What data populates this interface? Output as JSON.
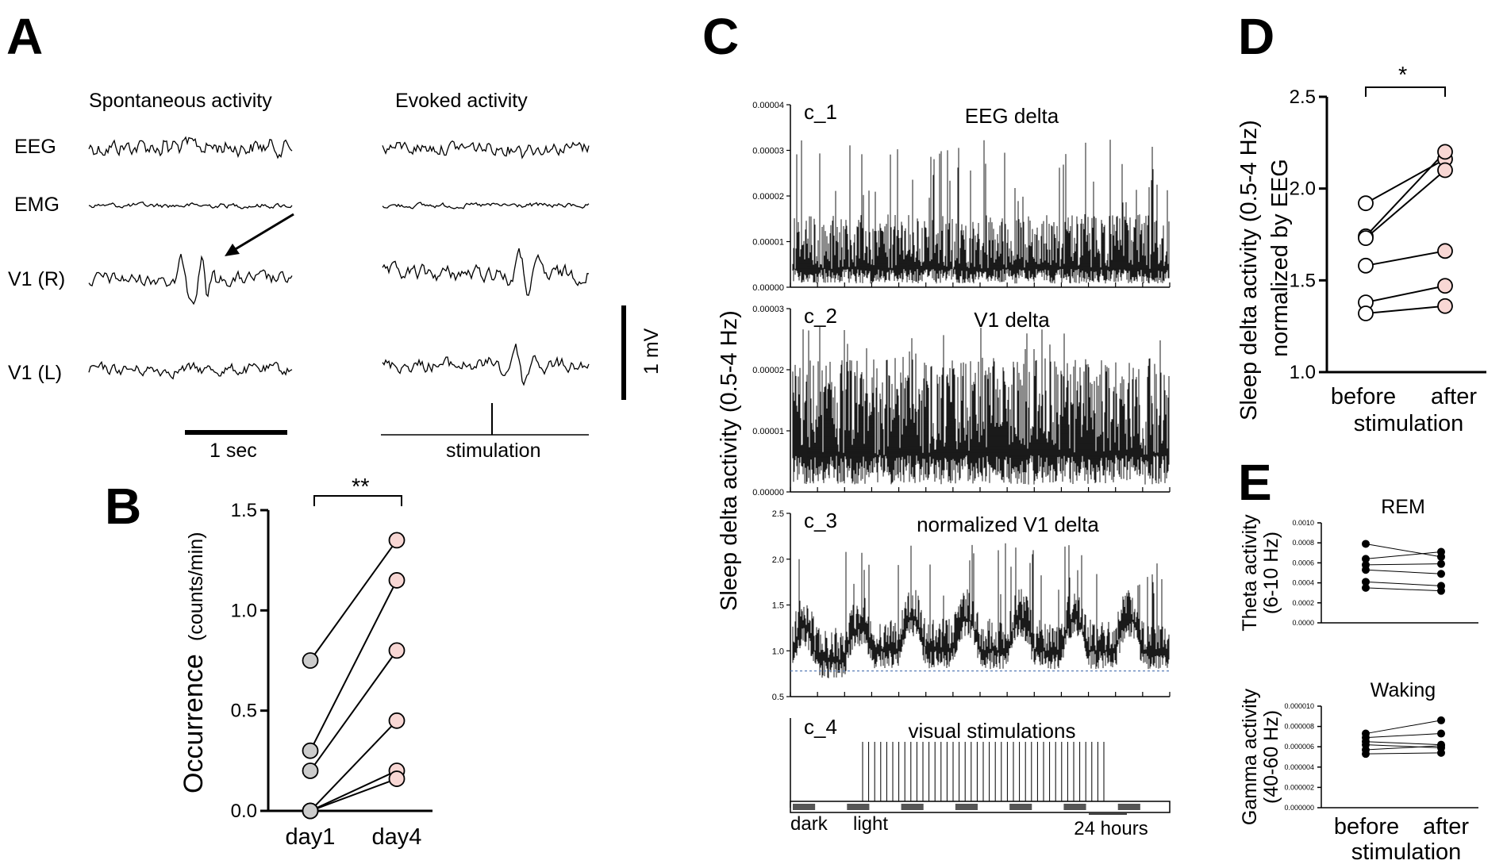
{
  "chart_data": [
    {
      "panel": "A",
      "type": "line",
      "title_left": "Spontaneous activity",
      "title_right": "Evoked activity",
      "channels": [
        "EEG",
        "EMG",
        "V1 (R)",
        "V1 (L)"
      ],
      "time_scale_label": "1 sec",
      "voltage_scale_label": "1 mV",
      "stimulation_label": "stimulation"
    },
    {
      "panel": "B",
      "type": "scatter",
      "ylabel_main": "Occurrence",
      "ylabel_unit": "(counts/min)",
      "categories": [
        "day1",
        "day4"
      ],
      "ylim": [
        0,
        1.5
      ],
      "yticks": [
        "0.0",
        "0.5",
        "1.0",
        "1.5"
      ],
      "significance": "**",
      "pairs": [
        [
          0.75,
          1.35
        ],
        [
          0.3,
          1.15
        ],
        [
          0.2,
          0.8
        ],
        [
          0.0,
          0.45
        ],
        [
          0.0,
          0.2
        ],
        [
          0.0,
          0.16
        ]
      ],
      "colors": {
        "day1": "#cccccc",
        "day4": "#f8d7d4"
      }
    },
    {
      "panel": "C",
      "type": "line",
      "ylabel": "Sleep delta activity (0.5-4 Hz)",
      "subpanels": [
        {
          "tag": "c_1",
          "title": "EEG delta",
          "yticks": [
            "0.00004",
            "0.00003",
            "0.00002",
            "0.00001",
            "0.00000"
          ]
        },
        {
          "tag": "c_2",
          "title": "V1 delta",
          "yticks": [
            "0.00003",
            "0.00002",
            "0.00001",
            "0.00000"
          ]
        },
        {
          "tag": "c_3",
          "title": "normalized V1 delta",
          "yticks": [
            "2.5",
            "2.0",
            "1.5",
            "1.0",
            "0.5"
          ]
        },
        {
          "tag": "c_4",
          "title": "visual stimulations"
        }
      ],
      "dark_label": "dark",
      "light_label": "light",
      "duration_label": "24 hours"
    },
    {
      "panel": "D",
      "type": "scatter",
      "ylabel_line1": "Sleep delta activity (0.5-4 Hz)",
      "ylabel_line2": "normalized by EEG",
      "categories": [
        "before",
        "after"
      ],
      "xlabel": "stimulation",
      "ylim": [
        1.0,
        2.5
      ],
      "yticks": [
        "1.0",
        "1.5",
        "2.0",
        "2.5"
      ],
      "significance": "*",
      "pairs": [
        [
          1.92,
          2.16
        ],
        [
          1.74,
          2.2
        ],
        [
          1.73,
          2.1
        ],
        [
          1.58,
          1.66
        ],
        [
          1.38,
          1.47
        ],
        [
          1.32,
          1.36
        ]
      ]
    },
    {
      "panel": "E",
      "type": "scatter",
      "categories": [
        "before",
        "after"
      ],
      "xlabel": "stimulation",
      "subpanels": [
        {
          "title": "REM",
          "ylabel_line1": "Theta activity",
          "ylabel_line2": "(6-10 Hz)",
          "ylim": [
            0,
            0.001
          ],
          "yticks": [
            "0.0010",
            "0.0008",
            "0.0006",
            "0.0004",
            "0.0002",
            "0.0000"
          ],
          "pairs": [
            [
              0.00079,
              0.00066
            ],
            [
              0.00064,
              0.00071
            ],
            [
              0.00058,
              0.00059
            ],
            [
              0.00053,
              0.00049
            ],
            [
              0.00041,
              0.00037
            ],
            [
              0.00035,
              0.00032
            ]
          ]
        },
        {
          "title": "Waking",
          "ylabel_line1": "Gamma activity",
          "ylabel_line2": "(40-60 Hz)",
          "ylim": [
            0,
            1e-05
          ],
          "yticks": [
            "0.000010",
            "0.000008",
            "0.000006",
            "0.000004",
            "0.000002",
            "0.000000"
          ],
          "pairs": [
            [
              7.3e-06,
              8.6e-06
            ],
            [
              6.9e-06,
              7.3e-06
            ],
            [
              6.5e-06,
              6.2e-06
            ],
            [
              6.2e-06,
              5.9e-06
            ],
            [
              5.7e-06,
              6.1e-06
            ],
            [
              5.3e-06,
              5.4e-06
            ]
          ]
        }
      ]
    }
  ],
  "panel_letters": [
    "A",
    "B",
    "C",
    "D",
    "E"
  ]
}
